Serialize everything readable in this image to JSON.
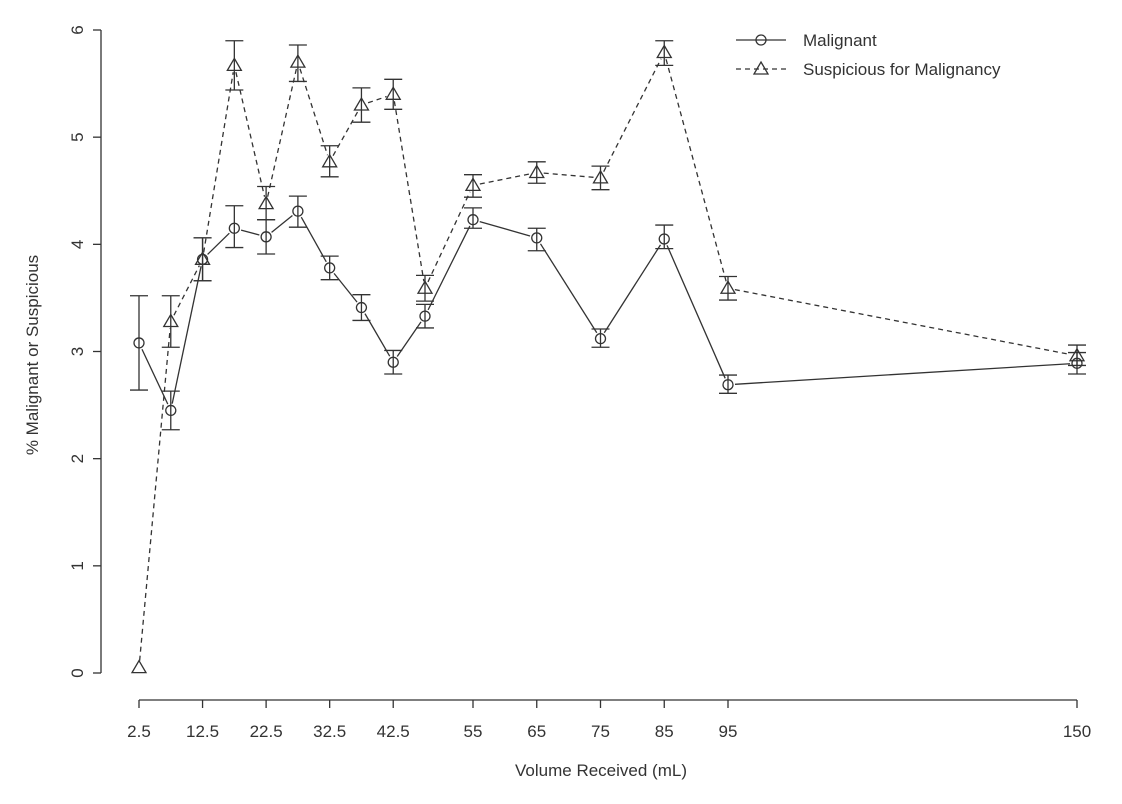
{
  "chart_data": {
    "type": "line",
    "xlabel": "Volume Received (mL)",
    "ylabel": "% Malignant or Suspicious",
    "ylim": [
      0,
      6
    ],
    "y_ticks": [
      0,
      1,
      2,
      3,
      4,
      5,
      6
    ],
    "x_tick_values": [
      2.5,
      12.5,
      22.5,
      32.5,
      42.5,
      55,
      65,
      75,
      85,
      95,
      150
    ],
    "x_tick_labels": [
      "2.5",
      "12.5",
      "22.5",
      "32.5",
      "42.5",
      "55",
      "65",
      "75",
      "85",
      "95",
      "150"
    ],
    "legend_position": "top-right",
    "grid": false,
    "series": [
      {
        "name": "Malignant",
        "line_style": "solid",
        "marker": "circle",
        "x": [
          2.5,
          7.5,
          12.5,
          17.5,
          22.5,
          27.5,
          32.5,
          37.5,
          42.5,
          47.5,
          55,
          65,
          75,
          85,
          95,
          150
        ],
        "values": [
          3.08,
          2.45,
          3.86,
          4.15,
          4.07,
          4.31,
          3.78,
          3.41,
          2.9,
          3.33,
          4.23,
          4.06,
          3.12,
          4.05,
          2.69,
          2.89
        ],
        "err_low": [
          2.64,
          2.27,
          3.66,
          3.97,
          3.91,
          4.16,
          3.67,
          3.29,
          2.79,
          3.22,
          4.15,
          3.94,
          3.04,
          3.96,
          2.61,
          2.79
        ],
        "err_high": [
          3.52,
          2.63,
          4.06,
          4.36,
          4.23,
          4.45,
          3.89,
          3.53,
          3.01,
          3.44,
          4.34,
          4.15,
          3.21,
          4.18,
          2.78,
          2.99
        ]
      },
      {
        "name": "Suspicious for Malignancy",
        "line_style": "dashed",
        "marker": "triangle",
        "x": [
          2.5,
          7.5,
          12.5,
          17.5,
          22.5,
          27.5,
          32.5,
          37.5,
          42.5,
          47.5,
          55,
          65,
          75,
          85,
          95,
          150
        ],
        "values": [
          0.05,
          3.28,
          3.86,
          5.67,
          4.38,
          5.7,
          4.77,
          5.3,
          5.4,
          3.59,
          4.55,
          4.67,
          4.62,
          5.79,
          3.59,
          2.96
        ],
        "err_low": [
          0.05,
          3.04,
          3.66,
          5.44,
          4.23,
          5.52,
          4.63,
          5.14,
          5.26,
          3.47,
          4.44,
          4.57,
          4.51,
          5.67,
          3.48,
          2.87
        ],
        "err_high": [
          0.05,
          3.52,
          4.06,
          5.9,
          4.54,
          5.86,
          4.92,
          5.46,
          5.54,
          3.71,
          4.65,
          4.77,
          4.73,
          5.9,
          3.7,
          3.06
        ]
      }
    ]
  }
}
